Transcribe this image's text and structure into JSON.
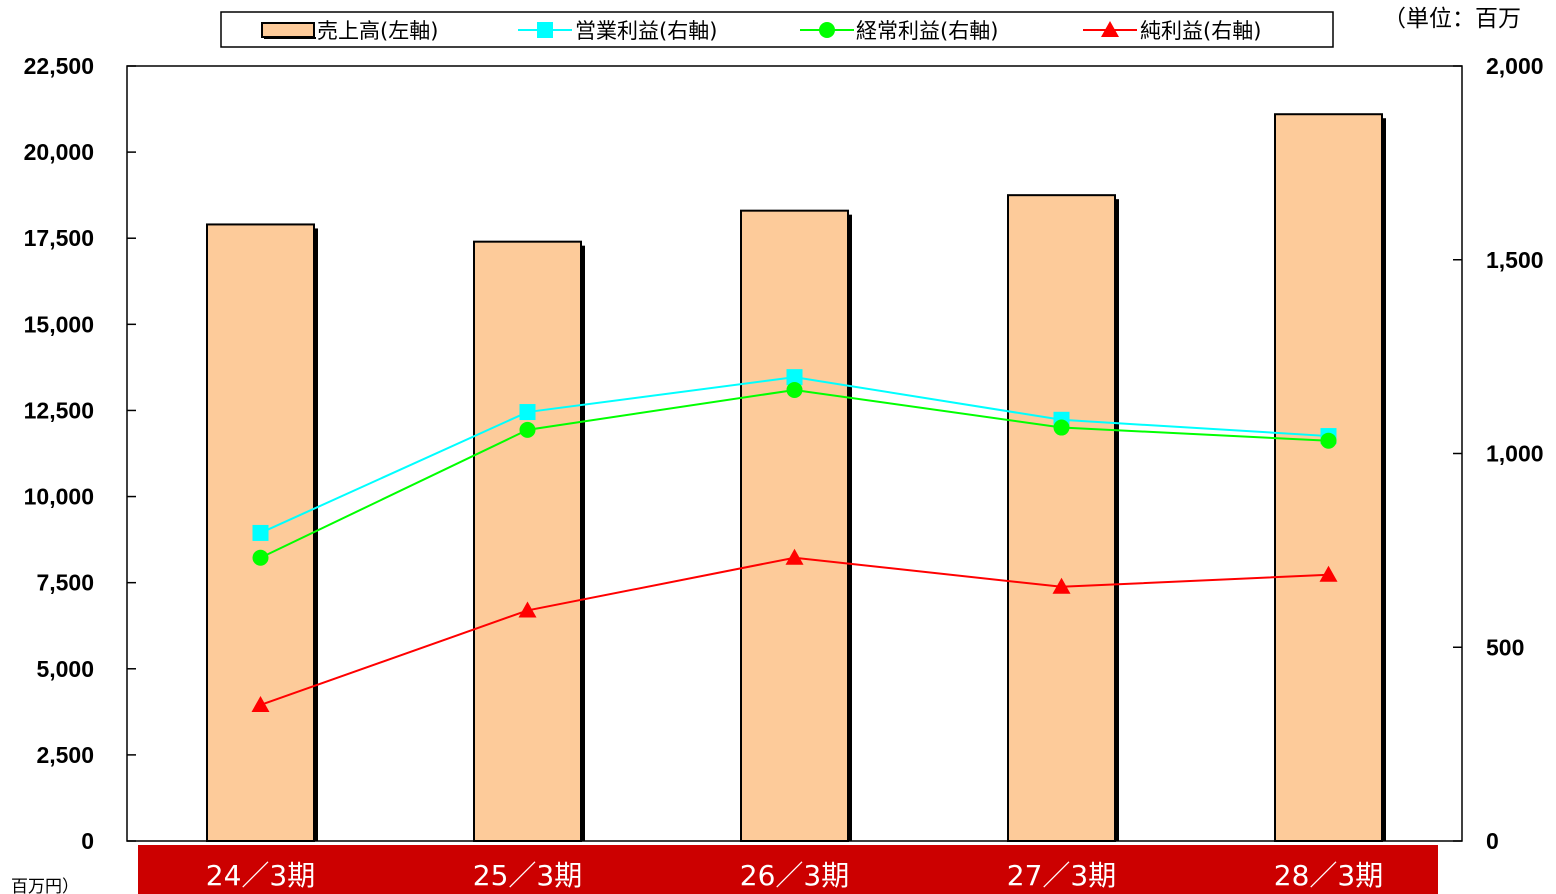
{
  "chart_data": {
    "type": "bar",
    "categories": [
      "24／3期",
      "25／3期",
      "26／3期",
      "27／3期",
      "28／3期"
    ],
    "series": [
      {
        "name": "売上高(左軸)",
        "kind": "bar",
        "axis": "left",
        "values": [
          17900,
          17400,
          18300,
          18750,
          21100
        ],
        "color": "#fdcb9a"
      },
      {
        "name": "営業利益(右軸)",
        "kind": "line",
        "axis": "right",
        "marker": "square",
        "values": [
          795,
          1107,
          1197,
          1087,
          1045
        ],
        "color": "#00ffff"
      },
      {
        "name": "経常利益(右軸)",
        "kind": "line",
        "axis": "right",
        "marker": "circle",
        "values": [
          731,
          1061,
          1164,
          1067,
          1033
        ],
        "color": "#00ff00"
      },
      {
        "name": "純利益(右軸)",
        "kind": "line",
        "axis": "right",
        "marker": "triangle",
        "values": [
          351,
          595,
          731,
          656,
          687
        ],
        "color": "#ff0000"
      }
    ],
    "left_axis": {
      "min": 0,
      "max": 22500,
      "ticks": [
        "0",
        "2,500",
        "5,000",
        "7,500",
        "10,000",
        "12,500",
        "15,000",
        "17,500",
        "20,000",
        "22,500"
      ]
    },
    "right_axis": {
      "min": 0,
      "max": 2000,
      "ticks": [
        "0",
        "500",
        "1,000",
        "1,500",
        "2,000"
      ]
    },
    "unit_label_top": "（単位：百万",
    "unit_label_bottom": "：百万円）",
    "category_band_color": "#cc0000",
    "legend_placement": "top-center",
    "grid": false
  }
}
